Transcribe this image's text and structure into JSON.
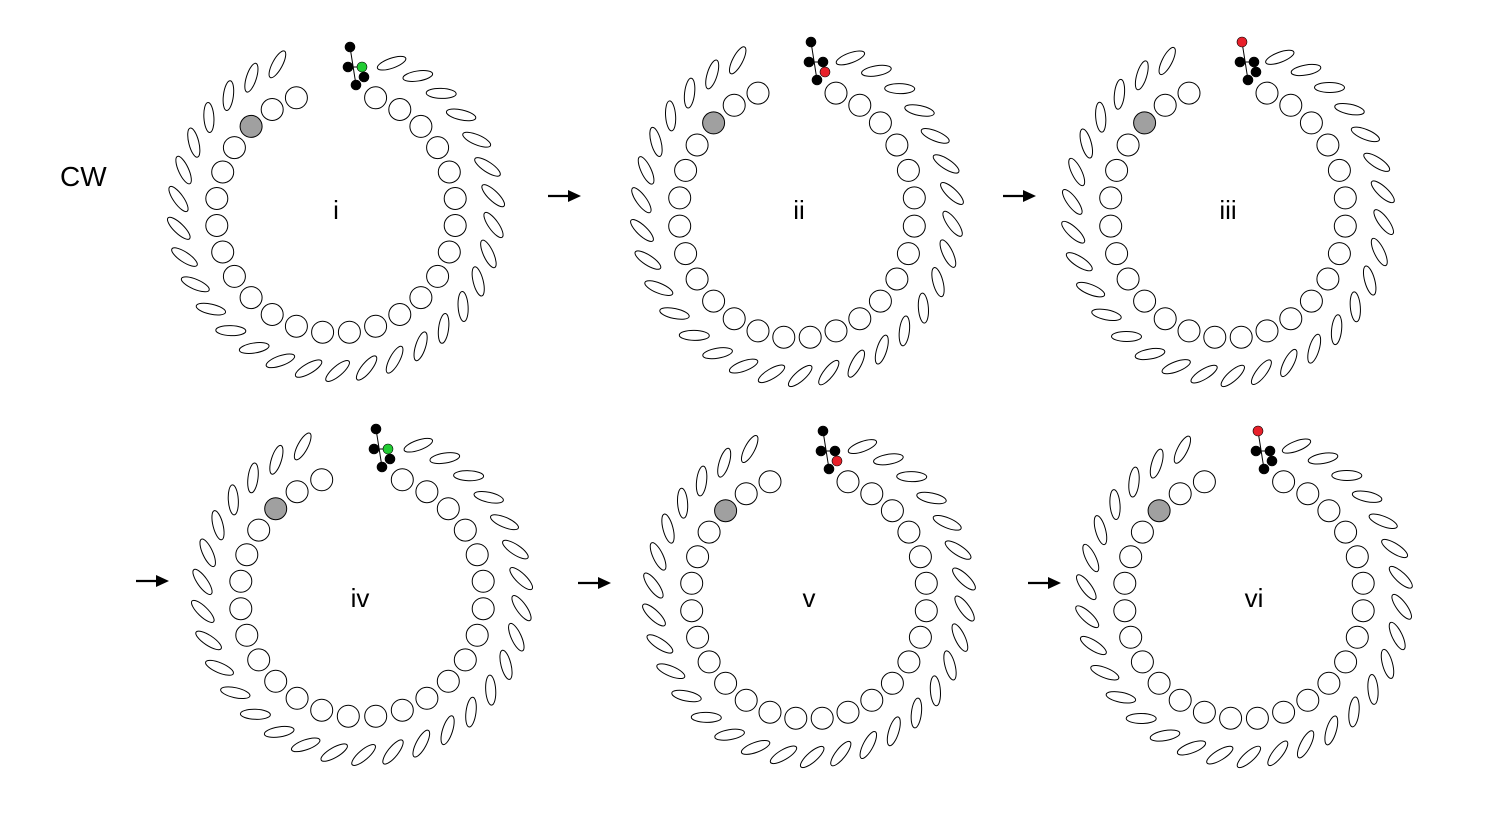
{
  "figure": {
    "direction_label": "CW",
    "panels": [
      {
        "label": "i"
      },
      {
        "label": "ii"
      },
      {
        "label": "iii"
      },
      {
        "label": "iv"
      },
      {
        "label": "v"
      },
      {
        "label": "vi"
      }
    ],
    "arrow_glyph": "→"
  },
  "colors": {
    "ring_subunit_stroke": "#000000",
    "ring_subunit_fill": "#ffffff",
    "highlighted_subunit_fill": "#a0a0a0",
    "marker_black": "#000000",
    "marker_green": "#22cc33",
    "marker_red": "#e8202a"
  }
}
